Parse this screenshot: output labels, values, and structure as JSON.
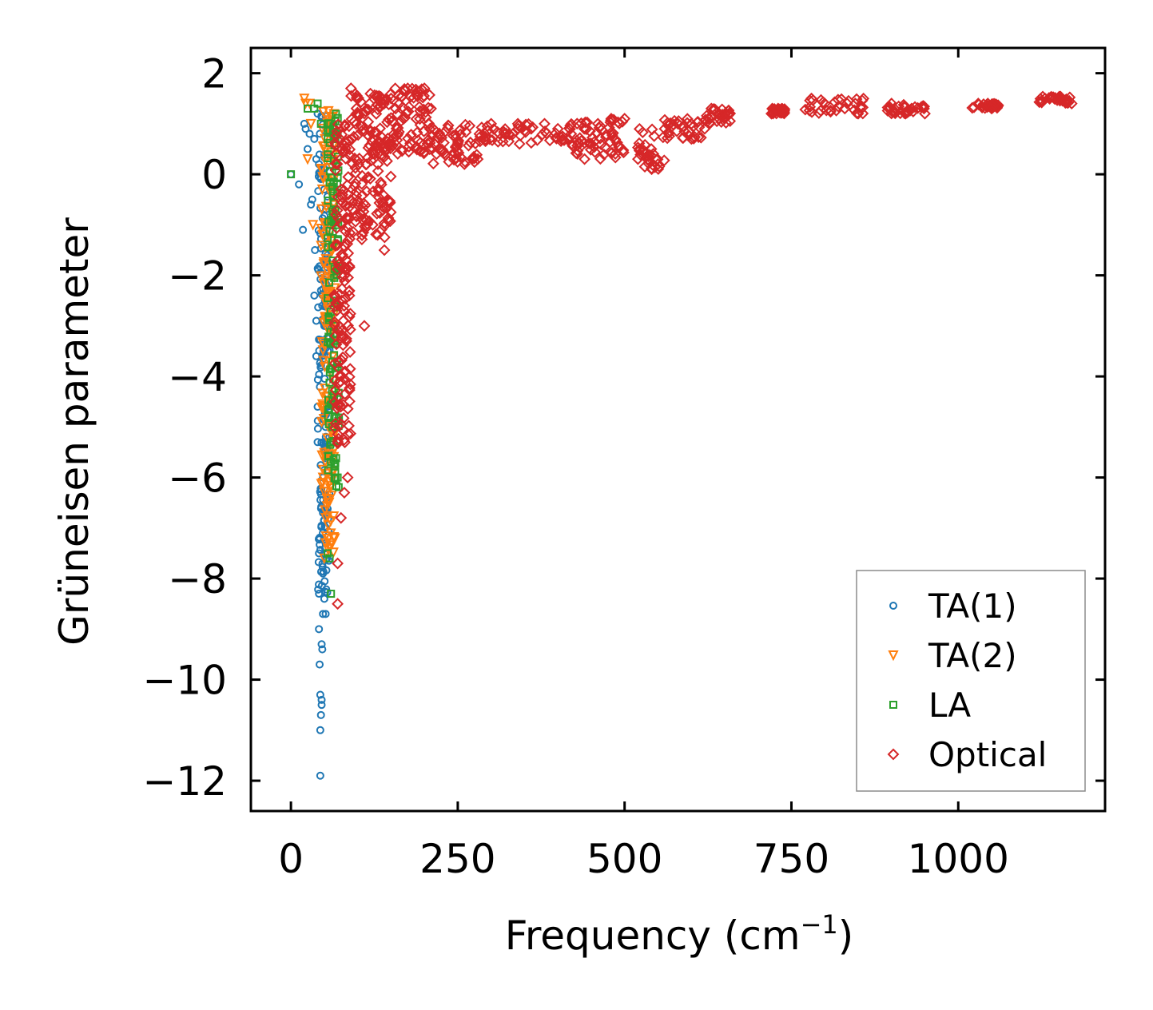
{
  "chart_data": {
    "type": "scatter",
    "title": "",
    "xlabel": "Frequency (cm",
    "xlabel_superscript": "−1",
    "xlabel_suffix": ")",
    "ylabel": "Grüneisen parameter",
    "xlim": [
      -60,
      1220
    ],
    "ylim": [
      -12.6,
      2.5
    ],
    "xticks": [
      0,
      250,
      500,
      750,
      1000
    ],
    "xtick_labels": [
      "0",
      "250",
      "500",
      "750",
      "1000"
    ],
    "yticks": [
      2,
      0,
      -2,
      -4,
      -6,
      -8,
      -10,
      -12
    ],
    "ytick_labels": [
      "2",
      "0",
      "−2",
      "−4",
      "−6",
      "−8",
      "−10",
      "−12"
    ],
    "grid": false,
    "legend_position": "bottom-right",
    "series": [
      {
        "name": "TA(1)",
        "marker": "circle",
        "color": "#1f77b4",
        "points": [
          [
            0,
            0
          ],
          [
            12,
            -0.2
          ],
          [
            18,
            -1.1
          ],
          [
            20,
            1.0
          ],
          [
            22,
            0.9
          ],
          [
            25,
            0.5
          ],
          [
            28,
            0.8
          ],
          [
            30,
            -0.6
          ],
          [
            32,
            -0.5
          ],
          [
            35,
            0.7
          ],
          [
            35,
            -2.4
          ],
          [
            36,
            -1.5
          ],
          [
            38,
            0.3
          ],
          [
            38,
            -3.6
          ],
          [
            38,
            -2.9
          ],
          [
            40,
            1.2
          ],
          [
            40,
            -4.6
          ],
          [
            40,
            -5.3
          ],
          [
            42,
            0.2
          ],
          [
            42,
            -7.5
          ],
          [
            42,
            -8.3
          ],
          [
            42,
            -9.0
          ],
          [
            43,
            -9.7
          ],
          [
            44,
            -10.3
          ],
          [
            44,
            -11.0
          ],
          [
            44,
            -11.9
          ],
          [
            45,
            -10.7
          ],
          [
            46,
            -10.5
          ],
          [
            46,
            -10.4
          ],
          [
            46,
            -9.3
          ],
          [
            47,
            -9.4
          ],
          [
            48,
            -8.7
          ],
          [
            48,
            -7.9
          ],
          [
            48,
            -6.7
          ],
          [
            48,
            -6.0
          ],
          [
            50,
            -8.4
          ],
          [
            50,
            -3.0
          ],
          [
            50,
            -1.7
          ],
          [
            50,
            -0.3
          ],
          [
            52,
            -8.7
          ],
          [
            52,
            -5.0
          ],
          [
            52,
            -2.3
          ],
          [
            54,
            -6.7
          ],
          [
            54,
            -7.6
          ],
          [
            55,
            -1.6
          ]
        ],
        "bands": [
          {
            "x": [
              40,
              58
            ],
            "y": [
              -8.3,
              1.2
            ]
          }
        ]
      },
      {
        "name": "TA(2)",
        "marker": "triangle-down",
        "color": "#ff7f0e",
        "points": [
          [
            20,
            1.5
          ],
          [
            22,
            1.4
          ],
          [
            25,
            0.3
          ],
          [
            28,
            1.4
          ],
          [
            30,
            1.0
          ],
          [
            33,
            -1.0
          ],
          [
            50,
            -7.6
          ],
          [
            52,
            -6.8
          ],
          [
            55,
            -6.5
          ],
          [
            58,
            -7.4
          ],
          [
            60,
            -6.0
          ],
          [
            62,
            -7.3
          ]
        ],
        "bands": [
          {
            "x": [
              45,
              66
            ],
            "y": [
              -7.5,
              1.3
            ]
          }
        ]
      },
      {
        "name": "LA",
        "marker": "square",
        "color": "#2ca02c",
        "points": [
          [
            0,
            0
          ],
          [
            25,
            1.3
          ],
          [
            35,
            1.3
          ],
          [
            40,
            1.4
          ],
          [
            45,
            1.0
          ],
          [
            55,
            -7.5
          ],
          [
            58,
            -7.6
          ],
          [
            60,
            -8.3
          ],
          [
            62,
            -5.0
          ],
          [
            65,
            -3.0
          ],
          [
            68,
            -2.0
          ],
          [
            70,
            -6.0
          ],
          [
            70,
            0.8
          ]
        ],
        "bands": [
          {
            "x": [
              55,
              72
            ],
            "y": [
              -6.5,
              1.2
            ]
          }
        ]
      },
      {
        "name": "Optical",
        "marker": "diamond",
        "color": "#d62728",
        "points": [
          [
            70,
            -8.5
          ],
          [
            70,
            -7.7
          ],
          [
            75,
            -6.8
          ],
          [
            80,
            -6.3
          ],
          [
            85,
            -6.0
          ],
          [
            90,
            1.7
          ],
          [
            110,
            -3.0
          ],
          [
            130,
            -1.2
          ],
          [
            140,
            -1.5
          ],
          [
            150,
            1.5
          ],
          [
            175,
            1.7
          ],
          [
            200,
            1.7
          ],
          [
            210,
            1.3
          ],
          [
            250,
            0.6
          ],
          [
            260,
            0.2
          ],
          [
            280,
            0.3
          ],
          [
            300,
            1.0
          ],
          [
            320,
            0.8
          ],
          [
            340,
            1.0
          ],
          [
            360,
            0.9
          ],
          [
            380,
            1.0
          ],
          [
            400,
            0.9
          ],
          [
            420,
            0.8
          ],
          [
            440,
            0.3
          ],
          [
            460,
            1.0
          ],
          [
            480,
            1.1
          ],
          [
            500,
            1.1
          ],
          [
            520,
            0.3
          ],
          [
            540,
            0.5
          ],
          [
            550,
            0.2
          ],
          [
            560,
            0.9
          ],
          [
            580,
            1.0
          ],
          [
            600,
            1.0
          ],
          [
            620,
            0.9
          ],
          [
            630,
            1.3
          ],
          [
            650,
            1.1
          ],
          [
            720,
            1.2
          ],
          [
            730,
            1.3
          ],
          [
            780,
            1.5
          ],
          [
            800,
            1.4
          ],
          [
            830,
            1.3
          ],
          [
            850,
            1.2
          ],
          [
            900,
            1.4
          ],
          [
            930,
            1.3
          ],
          [
            950,
            1.2
          ],
          [
            1030,
            1.4
          ],
          [
            1050,
            1.3
          ],
          [
            1130,
            1.5
          ],
          [
            1150,
            1.5
          ],
          [
            1170,
            1.4
          ]
        ],
        "bands": [
          {
            "x": [
              65,
              90
            ],
            "y": [
              -5.5,
              1.0
            ]
          },
          {
            "x": [
              90,
              150
            ],
            "y": [
              -1.3,
              1.6
            ]
          },
          {
            "x": [
              150,
              210
            ],
            "y": [
              0.4,
              1.7
            ]
          },
          {
            "x": [
              210,
              280
            ],
            "y": [
              0.2,
              1.0
            ]
          },
          {
            "x": [
              280,
              420
            ],
            "y": [
              0.6,
              1.0
            ]
          },
          {
            "x": [
              420,
              500
            ],
            "y": [
              0.3,
              1.1
            ]
          },
          {
            "x": [
              520,
              560
            ],
            "y": [
              0.1,
              0.9
            ]
          },
          {
            "x": [
              560,
              620
            ],
            "y": [
              0.7,
              1.1
            ]
          },
          {
            "x": [
              620,
              660
            ],
            "y": [
              1.0,
              1.3
            ]
          },
          {
            "x": [
              720,
              740
            ],
            "y": [
              1.2,
              1.3
            ]
          },
          {
            "x": [
              770,
              860
            ],
            "y": [
              1.2,
              1.5
            ]
          },
          {
            "x": [
              890,
              950
            ],
            "y": [
              1.2,
              1.4
            ]
          },
          {
            "x": [
              1020,
              1060
            ],
            "y": [
              1.3,
              1.4
            ]
          },
          {
            "x": [
              1120,
              1170
            ],
            "y": [
              1.4,
              1.55
            ]
          }
        ]
      }
    ]
  }
}
